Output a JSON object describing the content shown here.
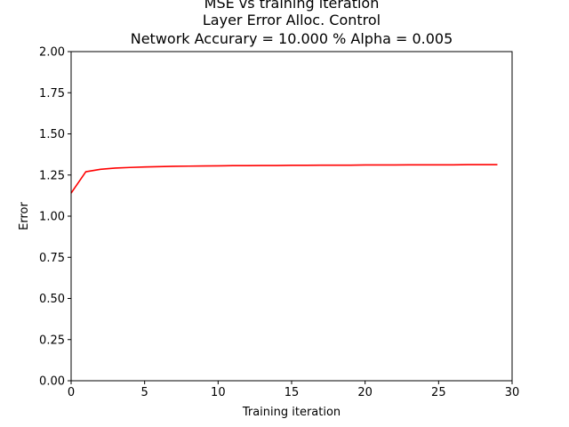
{
  "chart_data": {
    "type": "line",
    "title_lines": [
      "MSE vs training iteration",
      "Layer Error Alloc. Control",
      "Network Accurary = 10.000 % Alpha =  0.005"
    ],
    "xlabel": "Training iteration",
    "ylabel": "Error",
    "xlim": [
      0,
      30
    ],
    "ylim": [
      0,
      2
    ],
    "xticks": [
      0,
      5,
      10,
      15,
      20,
      25,
      30
    ],
    "xtick_labels": [
      "0",
      "5",
      "10",
      "15",
      "20",
      "25",
      "30"
    ],
    "yticks": [
      0,
      0.25,
      0.5,
      0.75,
      1.0,
      1.25,
      1.5,
      1.75,
      2.0
    ],
    "ytick_labels": [
      "0.00",
      "0.25",
      "0.50",
      "0.75",
      "1.00",
      "1.25",
      "1.50",
      "1.75",
      "2.00"
    ],
    "grid": false,
    "series": [
      {
        "color": "#ff0000",
        "x": [
          0,
          1,
          2,
          3,
          4,
          5,
          6,
          7,
          8,
          9,
          10,
          11,
          12,
          13,
          14,
          15,
          16,
          17,
          18,
          19,
          20,
          21,
          22,
          23,
          24,
          25,
          26,
          27,
          28,
          29
        ],
        "values": [
          1.14,
          1.27,
          1.285,
          1.292,
          1.296,
          1.299,
          1.301,
          1.303,
          1.304,
          1.305,
          1.306,
          1.307,
          1.307,
          1.308,
          1.308,
          1.309,
          1.309,
          1.31,
          1.31,
          1.31,
          1.311,
          1.311,
          1.311,
          1.312,
          1.312,
          1.312,
          1.312,
          1.313,
          1.313,
          1.313
        ]
      }
    ]
  }
}
